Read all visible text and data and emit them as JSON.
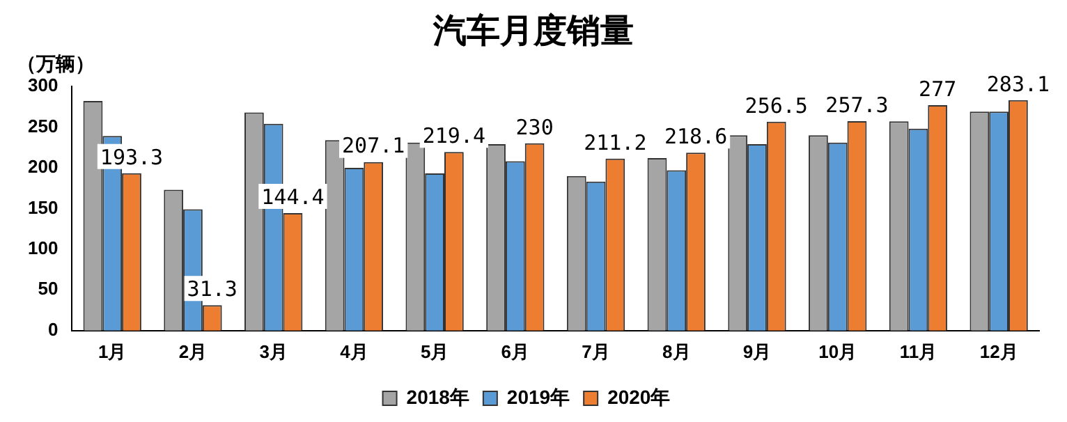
{
  "chart_data": {
    "type": "bar",
    "title": "汽车月度销量",
    "ylabel": "（万辆）",
    "categories": [
      "1月",
      "2月",
      "3月",
      "4月",
      "5月",
      "6月",
      "7月",
      "8月",
      "9月",
      "10月",
      "11月",
      "12月"
    ],
    "series": [
      {
        "name": "2018年",
        "color": "#a5a5a5",
        "values": [
          282,
          173,
          268,
          234,
          231,
          229,
          190,
          212,
          240,
          240,
          257,
          269
        ]
      },
      {
        "name": "2019年",
        "color": "#5b9bd5",
        "values": [
          239,
          149,
          254,
          200,
          193,
          208,
          183,
          197,
          229,
          231,
          248,
          269
        ]
      },
      {
        "name": "2020年",
        "color": "#ed7d31",
        "values": [
          193.3,
          31.3,
          144.4,
          207.1,
          219.4,
          230,
          211.2,
          218.6,
          256.5,
          257.3,
          277,
          283.1
        ],
        "value_labels": [
          "193.3",
          "31.3",
          "144.4",
          "207.1",
          "219.4",
          "230",
          "211.2",
          "218.6",
          "256.5",
          "257.3",
          "277",
          "283.1"
        ]
      }
    ],
    "ylim": [
      0,
      300
    ],
    "yticks": [
      0,
      50,
      100,
      150,
      200,
      250,
      300
    ],
    "grid": false,
    "legend": "bottom"
  }
}
